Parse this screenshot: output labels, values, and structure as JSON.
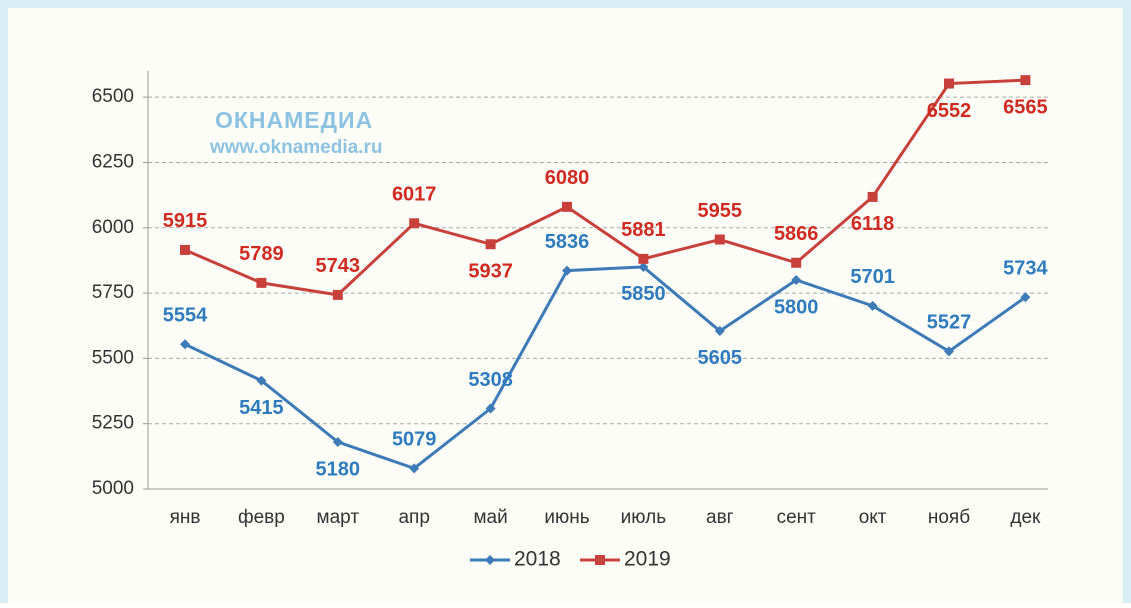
{
  "chart_data": {
    "type": "line",
    "categories": [
      "янв",
      "февр",
      "март",
      "апр",
      "май",
      "июнь",
      "июль",
      "авг",
      "сент",
      "окт",
      "нояб",
      "дек"
    ],
    "series": [
      {
        "name": "2018",
        "color": "#3d7ab8",
        "label_color": "#2e7bbf",
        "marker": "diamond",
        "values": [
          5554,
          5415,
          5180,
          5079,
          5308,
          5836,
          5850,
          5605,
          5800,
          5701,
          5527,
          5734
        ]
      },
      {
        "name": "2019",
        "color": "#c8403b",
        "label_color": "#d02a22",
        "marker": "square",
        "values": [
          5915,
          5789,
          5743,
          6017,
          5937,
          6080,
          5881,
          5955,
          5866,
          6118,
          6552,
          6565
        ]
      }
    ],
    "ylim": [
      5000,
      6600
    ],
    "yticks": [
      5000,
      5250,
      5500,
      5750,
      6000,
      6250,
      6500
    ],
    "grid": true,
    "legend": "bottom",
    "annotations": [
      "ОКНАМЕДИА",
      "www.oknamedia.ru"
    ]
  }
}
